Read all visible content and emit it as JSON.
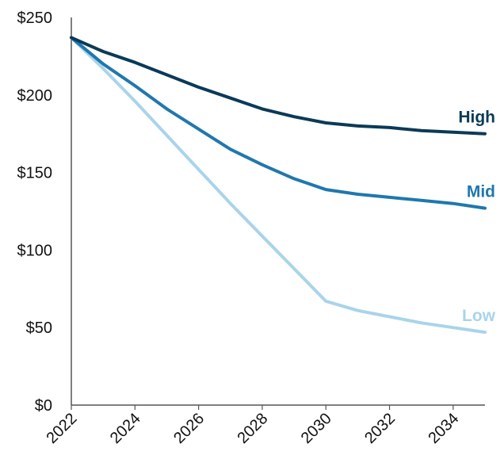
{
  "chart_data": {
    "type": "line",
    "title": "",
    "xlabel": "",
    "ylabel": "",
    "x": [
      2022,
      2023,
      2024,
      2025,
      2026,
      2027,
      2028,
      2029,
      2030,
      2031,
      2032,
      2033,
      2034,
      2035
    ],
    "x_ticks": [
      "2022",
      "2024",
      "2026",
      "2028",
      "2030",
      "2032",
      "2034"
    ],
    "y_ticks": [
      {
        "value": 0,
        "label": "$0"
      },
      {
        "value": 50,
        "label": "$50"
      },
      {
        "value": 100,
        "label": "$100"
      },
      {
        "value": 150,
        "label": "$150"
      },
      {
        "value": 200,
        "label": "$200"
      },
      {
        "value": 250,
        "label": "$250"
      }
    ],
    "xlim": [
      2022,
      2035
    ],
    "ylim": [
      0,
      250
    ],
    "grid": false,
    "legend": "direct labels at line ends",
    "series": [
      {
        "name": "High",
        "color": "#0b3a57",
        "values": [
          237,
          228,
          221,
          213,
          205,
          198,
          191,
          186,
          182,
          180,
          179,
          177,
          176,
          175
        ]
      },
      {
        "name": "Mid",
        "color": "#1f78ad",
        "values": [
          237,
          220,
          206,
          191,
          178,
          165,
          155,
          146,
          139,
          136,
          134,
          132,
          130,
          127
        ]
      },
      {
        "name": "Low",
        "color": "#a9d4ea",
        "values": [
          237,
          217,
          196,
          174,
          152,
          130,
          109,
          88,
          67,
          61,
          57,
          53,
          50,
          47
        ]
      }
    ]
  }
}
